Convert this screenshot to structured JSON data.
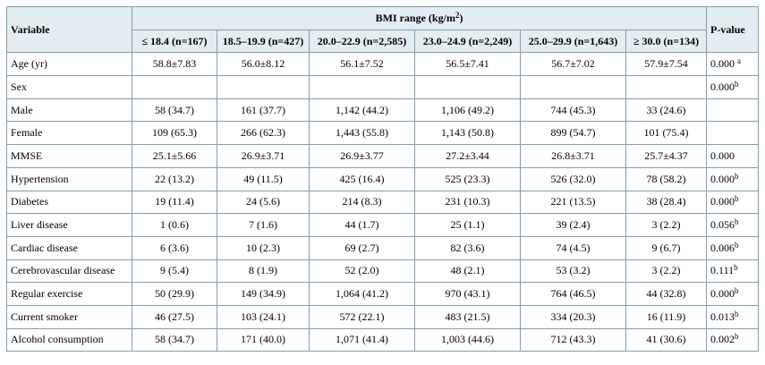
{
  "header": {
    "variable": "Variable",
    "bmi_range": "BMI range (kg/m",
    "bmi_range_sup": "2",
    "bmi_range_close": ")",
    "p_value": "P-value",
    "groups": [
      "≤ 18.4 (n=167)",
      "18.5–19.9 (n=427)",
      "20.0–22.9 (n=2,585)",
      "23.0–24.9 (n=2,249)",
      "25.0–29.9 (n=1,643)",
      "≥ 30.0 (n=134)"
    ]
  },
  "rows": [
    {
      "label": "Age (yr)",
      "values": [
        "58.8±7.83",
        "56.0±8.12",
        "56.1±7.52",
        "56.5±7.41",
        "56.7±7.02",
        "57.9±7.54"
      ],
      "p": "0.000 ",
      "p_sup": "a"
    },
    {
      "label": "Sex",
      "values": [
        "",
        "",
        "",
        "",
        "",
        ""
      ],
      "p": "0.000",
      "p_sup": "b"
    },
    {
      "label": "Male",
      "values": [
        "58 (34.7)",
        "161 (37.7)",
        "1,142 (44.2)",
        "1,106 (49.2)",
        "744 (45.3)",
        "33 (24.6)"
      ],
      "p": "",
      "p_sup": ""
    },
    {
      "label": "Female",
      "values": [
        "109 (65.3)",
        "266 (62.3)",
        "1,443 (55.8)",
        "1,143 (50.8)",
        "899 (54.7)",
        "101 (75.4)"
      ],
      "p": "",
      "p_sup": ""
    },
    {
      "label": "MMSE",
      "values": [
        "25.1±5.66",
        "26.9±3.71",
        "26.9±3.77",
        "27.2±3.44",
        "26.8±3.71",
        "25.7±4.37"
      ],
      "p": "0.000",
      "p_sup": ""
    },
    {
      "label": "Hypertension",
      "values": [
        "22 (13.2)",
        "49 (11.5)",
        "425 (16.4)",
        "525 (23.3)",
        "526 (32.0)",
        "78 (58.2)"
      ],
      "p": "0.000",
      "p_sup": "b"
    },
    {
      "label": "Diabetes",
      "values": [
        "19 (11.4)",
        "24 (5.6)",
        "214 (8.3)",
        "231 (10.3)",
        "221 (13.5)",
        "38 (28.4)"
      ],
      "p": "0.000",
      "p_sup": "b"
    },
    {
      "label": "Liver disease",
      "values": [
        "1 (0.6)",
        "7 (1.6)",
        "44 (1.7)",
        "25 (1.1)",
        "39 (2.4)",
        "3 (2.2)"
      ],
      "p": "0.056",
      "p_sup": "b"
    },
    {
      "label": "Cardiac disease",
      "values": [
        "6 (3.6)",
        "10 (2.3)",
        "69 (2.7)",
        "82 (3.6)",
        "74 (4.5)",
        "9 (6.7)"
      ],
      "p": "0.006",
      "p_sup": "b"
    },
    {
      "label": "Cerebrovascular disease",
      "values": [
        "9 (5.4)",
        "8 (1.9)",
        "52 (2.0)",
        "48 (2.1)",
        "53 (3.2)",
        "3 (2.2)"
      ],
      "p": "0.111",
      "p_sup": "b"
    },
    {
      "label": "Regular exercise",
      "values": [
        "50 (29.9)",
        "149 (34.9)",
        "1,064 (41.2)",
        "970 (43.1)",
        "764 (46.5)",
        "44 (32.8)"
      ],
      "p": "0.000",
      "p_sup": "b"
    },
    {
      "label": "Current smoker",
      "values": [
        "46 (27.5)",
        "103 (24.1)",
        "572 (22.1)",
        "483 (21.5)",
        "334 (20.3)",
        "16 (11.9)"
      ],
      "p": "0.013",
      "p_sup": "b"
    },
    {
      "label": "Alcohol consumption",
      "values": [
        "58 (34.7)",
        "171 (40.0)",
        "1,071 (41.4)",
        "1,003 (44.6)",
        "712 (43.3)",
        "41 (30.6)"
      ],
      "p": "0.002",
      "p_sup": "b"
    }
  ]
}
